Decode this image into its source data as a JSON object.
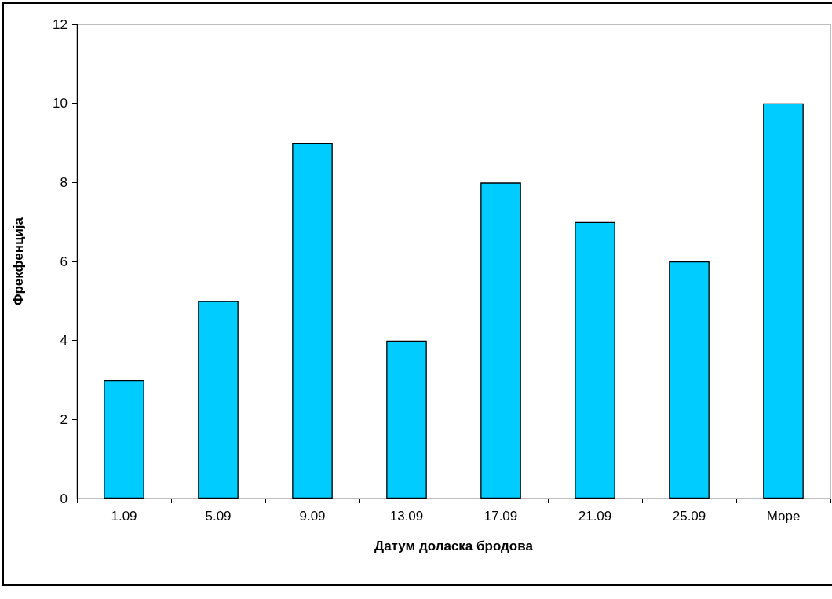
{
  "chart_data": {
    "type": "bar",
    "xlabel": "Датум доласка бродова",
    "ylabel": "Фрекфенција",
    "categories": [
      "1.09",
      "5.09",
      "9.09",
      "13.09",
      "17.09",
      "21.09",
      "25.09",
      "Море"
    ],
    "values": [
      3,
      5,
      9,
      4,
      8,
      7,
      6,
      10
    ],
    "color": "#00ccff",
    "ylim": [
      0,
      12
    ],
    "yticks": [
      0,
      2,
      4,
      6,
      8,
      10,
      12
    ]
  }
}
